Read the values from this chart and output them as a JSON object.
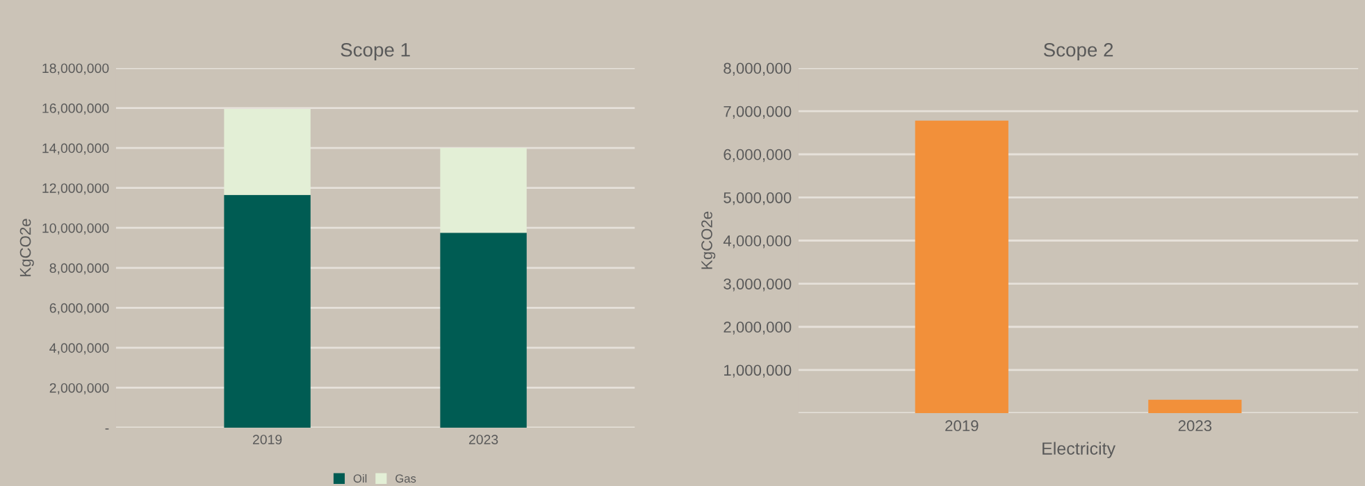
{
  "chart_data": [
    {
      "type": "bar",
      "title": "Scope 1",
      "ylabel": "KgCO2e",
      "categories": [
        "2019",
        "2023"
      ],
      "stacked": true,
      "series": [
        {
          "name": "Oil",
          "color": "#005c53",
          "values": [
            11650000,
            9760000
          ]
        },
        {
          "name": "Gas",
          "color": "#e3efd6",
          "values": [
            4300000,
            4240000
          ]
        }
      ],
      "ylim": [
        0,
        18000000
      ],
      "yticks": [
        {
          "value": 0,
          "label": "-"
        },
        {
          "value": 2000000,
          "label": "2,000,000"
        },
        {
          "value": 4000000,
          "label": "4,000,000"
        },
        {
          "value": 6000000,
          "label": "6,000,000"
        },
        {
          "value": 8000000,
          "label": "8,000,000"
        },
        {
          "value": 10000000,
          "label": "10,000,000"
        },
        {
          "value": 12000000,
          "label": "12,000,000"
        },
        {
          "value": 14000000,
          "label": "14,000,000"
        },
        {
          "value": 16000000,
          "label": "16,000,000"
        },
        {
          "value": 18000000,
          "label": "18,000,000"
        }
      ],
      "grid": "y",
      "legend": "bottom"
    },
    {
      "type": "bar",
      "title": "Scope 2",
      "ylabel": "KgCO2e",
      "xlabel": "Electricity",
      "categories": [
        "2019",
        "2023"
      ],
      "series": [
        {
          "color": "#f2903a",
          "values": [
            6780000,
            310000
          ]
        }
      ],
      "ylim": [
        0,
        8000000
      ],
      "yticks": [
        {
          "value": 0,
          "label": null
        },
        {
          "value": 1000000,
          "label": "1,000,000"
        },
        {
          "value": 2000000,
          "label": "2,000,000"
        },
        {
          "value": 3000000,
          "label": "3,000,000"
        },
        {
          "value": 4000000,
          "label": "4,000,000"
        },
        {
          "value": 5000000,
          "label": "5,000,000"
        },
        {
          "value": 6000000,
          "label": "6,000,000"
        },
        {
          "value": 7000000,
          "label": "7,000,000"
        },
        {
          "value": 8000000,
          "label": "8,000,000"
        }
      ],
      "grid": "y"
    }
  ]
}
